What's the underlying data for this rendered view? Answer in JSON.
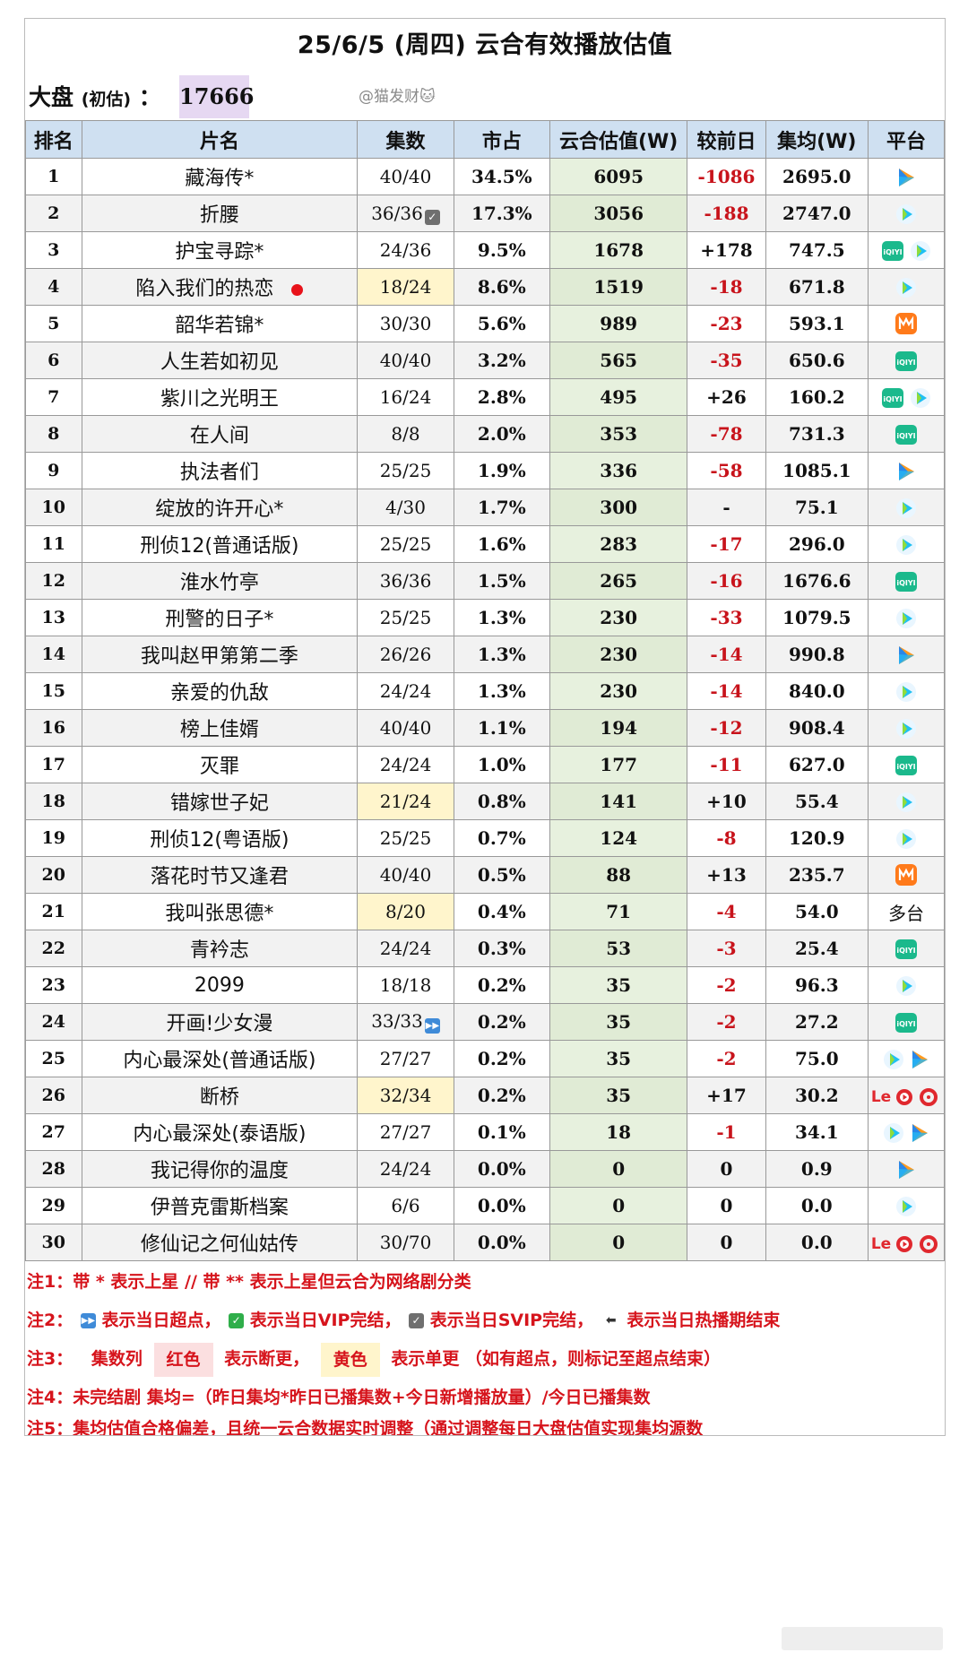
{
  "header": {
    "title": "25/6/5 (周四) 云合有效播放估值",
    "dapan_label": "大盘",
    "dapan_sub": "(初估)",
    "dapan_colon": "：",
    "dapan_value": "17666",
    "watermark": "@猫发财🐱"
  },
  "table": {
    "columns": [
      "排名",
      "片名",
      "集数",
      "市占",
      "云合估值(W)",
      "较前日",
      "集均(W)",
      "平台"
    ],
    "rows": [
      {
        "rank": "1",
        "name": "藏海传*",
        "episodes": "40/40",
        "share": "34.5%",
        "est": "6095",
        "change": "-1086",
        "avg": "2695.0",
        "platforms": [
          "tencent"
        ]
      },
      {
        "rank": "2",
        "name": "折腰",
        "episodes": "36/36",
        "ep_badge": "svip",
        "share": "17.3%",
        "est": "3056",
        "change": "-188",
        "avg": "2747.0",
        "platforms": [
          "youku"
        ]
      },
      {
        "rank": "3",
        "name": "护宝寻踪*",
        "episodes": "24/36",
        "share": "9.5%",
        "est": "1678",
        "change": "+178",
        "avg": "747.5",
        "platforms": [
          "iqiyi",
          "youku"
        ]
      },
      {
        "rank": "4",
        "name": "陷入我们的热恋",
        "dot": true,
        "episodes": "18/24",
        "ep_color": "yellow",
        "share": "8.6%",
        "est": "1519",
        "change": "-18",
        "avg": "671.8",
        "platforms": [
          "youku"
        ]
      },
      {
        "rank": "5",
        "name": "韶华若锦*",
        "episodes": "30/30",
        "share": "5.6%",
        "est": "989",
        "change": "-23",
        "avg": "593.1",
        "platforms": [
          "mango"
        ]
      },
      {
        "rank": "6",
        "name": "人生若如初见",
        "episodes": "40/40",
        "share": "3.2%",
        "est": "565",
        "change": "-35",
        "avg": "650.6",
        "platforms": [
          "iqiyi"
        ]
      },
      {
        "rank": "7",
        "name": "紫川之光明王",
        "episodes": "16/24",
        "share": "2.8%",
        "est": "495",
        "change": "+26",
        "avg": "160.2",
        "platforms": [
          "iqiyi",
          "youku"
        ]
      },
      {
        "rank": "8",
        "name": "在人间",
        "episodes": "8/8",
        "share": "2.0%",
        "est": "353",
        "change": "-78",
        "avg": "731.3",
        "platforms": [
          "iqiyi"
        ]
      },
      {
        "rank": "9",
        "name": "执法者们",
        "episodes": "25/25",
        "share": "1.9%",
        "est": "336",
        "change": "-58",
        "avg": "1085.1",
        "platforms": [
          "tencent"
        ]
      },
      {
        "rank": "10",
        "name": "绽放的许开心*",
        "episodes": "4/30",
        "share": "1.7%",
        "est": "300",
        "change": "-",
        "avg": "75.1",
        "platforms": [
          "youku"
        ]
      },
      {
        "rank": "11",
        "name": "刑侦12(普通话版)",
        "episodes": "25/25",
        "share": "1.6%",
        "est": "283",
        "change": "-17",
        "avg": "296.0",
        "platforms": [
          "youku"
        ]
      },
      {
        "rank": "12",
        "name": "淮水竹亭",
        "episodes": "36/36",
        "share": "1.5%",
        "est": "265",
        "change": "-16",
        "avg": "1676.6",
        "platforms": [
          "iqiyi"
        ]
      },
      {
        "rank": "13",
        "name": "刑警的日子*",
        "episodes": "25/25",
        "share": "1.3%",
        "est": "230",
        "change": "-33",
        "avg": "1079.5",
        "platforms": [
          "youku"
        ]
      },
      {
        "rank": "14",
        "name": "我叫赵甲第第二季",
        "episodes": "26/26",
        "share": "1.3%",
        "est": "230",
        "change": "-14",
        "avg": "990.8",
        "platforms": [
          "tencent"
        ]
      },
      {
        "rank": "15",
        "name": "亲爱的仇敌",
        "episodes": "24/24",
        "share": "1.3%",
        "est": "230",
        "change": "-14",
        "avg": "840.0",
        "platforms": [
          "youku"
        ]
      },
      {
        "rank": "16",
        "name": "榜上佳婿",
        "episodes": "40/40",
        "share": "1.1%",
        "est": "194",
        "change": "-12",
        "avg": "908.4",
        "platforms": [
          "youku"
        ]
      },
      {
        "rank": "17",
        "name": "灭罪",
        "episodes": "24/24",
        "share": "1.0%",
        "est": "177",
        "change": "-11",
        "avg": "627.0",
        "platforms": [
          "iqiyi"
        ]
      },
      {
        "rank": "18",
        "name": "错嫁世子妃",
        "episodes": "21/24",
        "ep_color": "yellow",
        "share": "0.8%",
        "est": "141",
        "change": "+10",
        "avg": "55.4",
        "platforms": [
          "youku"
        ]
      },
      {
        "rank": "19",
        "name": "刑侦12(粤语版)",
        "episodes": "25/25",
        "share": "0.7%",
        "est": "124",
        "change": "-8",
        "avg": "120.9",
        "platforms": [
          "youku"
        ]
      },
      {
        "rank": "20",
        "name": "落花时节又逢君",
        "episodes": "40/40",
        "share": "0.5%",
        "est": "88",
        "change": "+13",
        "avg": "235.7",
        "platforms": [
          "mango"
        ]
      },
      {
        "rank": "21",
        "name": "我叫张思德*",
        "episodes": "8/20",
        "ep_color": "yellow",
        "share": "0.4%",
        "est": "71",
        "change": "-4",
        "avg": "54.0",
        "platforms": [],
        "platform_text": "多台"
      },
      {
        "rank": "22",
        "name": "青衿志",
        "episodes": "24/24",
        "share": "0.3%",
        "est": "53",
        "change": "-3",
        "avg": "25.4",
        "platforms": [
          "iqiyi"
        ]
      },
      {
        "rank": "23",
        "name": "2099",
        "episodes": "18/18",
        "share": "0.2%",
        "est": "35",
        "change": "-2",
        "avg": "96.3",
        "platforms": [
          "youku"
        ]
      },
      {
        "rank": "24",
        "name": "开画!少女漫",
        "episodes": "33/33",
        "ep_badge": "fast",
        "share": "0.2%",
        "est": "35",
        "change": "-2",
        "avg": "27.2",
        "platforms": [
          "iqiyi"
        ]
      },
      {
        "rank": "25",
        "name": "内心最深处(普通话版)",
        "episodes": "27/27",
        "share": "0.2%",
        "est": "35",
        "change": "-2",
        "avg": "75.0",
        "platforms": [
          "youku",
          "tencent"
        ]
      },
      {
        "rank": "26",
        "name": "断桥",
        "episodes": "32/34",
        "ep_color": "yellow",
        "share": "0.2%",
        "est": "35",
        "change": "+17",
        "avg": "30.2",
        "platforms": [
          "le",
          "play",
          "ring"
        ]
      },
      {
        "rank": "27",
        "name": "内心最深处(泰语版)",
        "episodes": "27/27",
        "share": "0.1%",
        "est": "18",
        "change": "-1",
        "avg": "34.1",
        "platforms": [
          "youku",
          "tencent"
        ]
      },
      {
        "rank": "28",
        "name": "我记得你的温度",
        "episodes": "24/24",
        "share": "0.0%",
        "est": "0",
        "change": "0",
        "avg": "0.9",
        "platforms": [
          "tencent"
        ]
      },
      {
        "rank": "29",
        "name": "伊普克雷斯档案",
        "episodes": "6/6",
        "share": "0.0%",
        "est": "0",
        "change": "0",
        "avg": "0.0",
        "platforms": [
          "youku"
        ]
      },
      {
        "rank": "30",
        "name": "修仙记之何仙姑传",
        "episodes": "30/70",
        "share": "0.0%",
        "est": "0",
        "change": "0",
        "avg": "0.0",
        "platforms": [
          "le",
          "play",
          "ring"
        ]
      }
    ]
  },
  "notes": {
    "n1": "注1：带 * 表示上星 // 带 ** 表示上星但云合为网络剧分类",
    "n2_prefix": "注2：",
    "n2_a": "表示当日超点，",
    "n2_b": "表示当日VIP完结，",
    "n2_c": "表示当日SVIP完结，",
    "n2_d": "表示当日热播期结束",
    "n3_prefix": "注3：",
    "n3_col": "集数列",
    "n3_red": "红色",
    "n3_red_desc": "表示断更，",
    "n3_yellow": "黄色",
    "n3_yellow_desc": "表示单更 （如有超点，则标记至超点结束）",
    "n4": "注4：未完结剧 集均=（昨日集均*昨日已播集数+今日新增播放量）/今日已播集数",
    "n5": "注5：集均估值合格偏差，且统一云合数据实时调整（通过调整每日大盘估值实现集均源数"
  },
  "colors": {
    "header_bg": "#cfe0f1",
    "estimate_bg": "#e7f1de",
    "negative": "#c8131b",
    "yellow_cell": "#fff5cc",
    "dapan_bg": "#e6d8f2",
    "note_text": "#d6141c"
  }
}
